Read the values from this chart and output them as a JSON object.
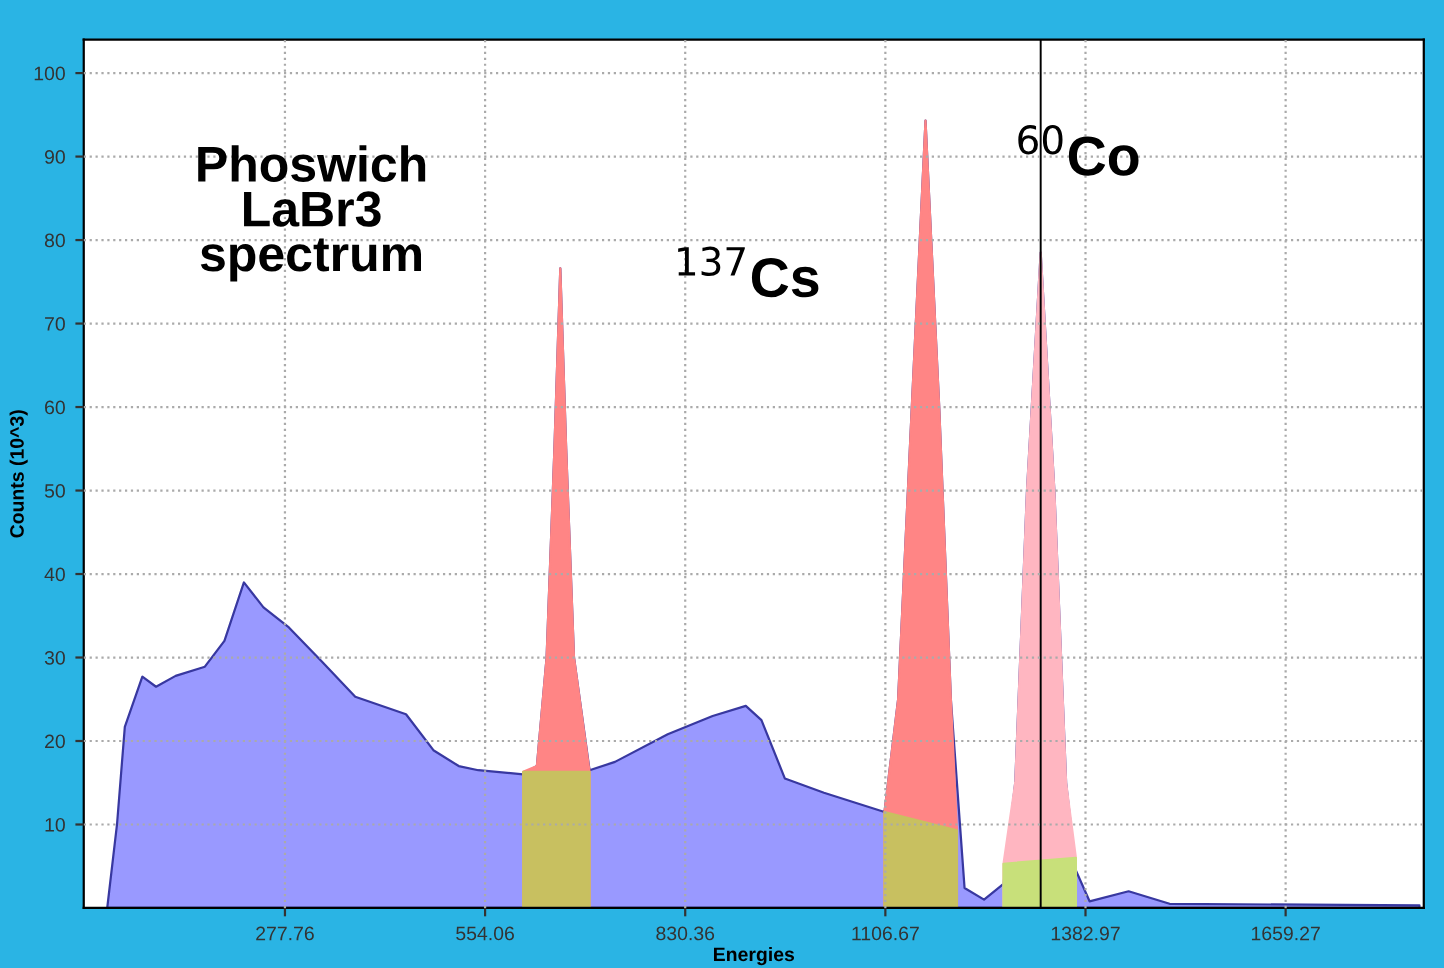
{
  "chart_data": {
    "type": "area",
    "xlabel": "Energies",
    "ylabel": "Counts (10^3)",
    "xlim": [
      0,
      1850
    ],
    "ylim": [
      0,
      104
    ],
    "xticks": [
      277.76,
      554.06,
      830.36,
      1106.67,
      1382.97,
      1659.27
    ],
    "yticks": [
      10,
      20,
      30,
      40,
      50,
      60,
      70,
      80,
      90,
      100
    ],
    "grid": true,
    "series": [
      {
        "color": "#9999ff",
        "x": [
          32.4,
          45.9,
          56.7,
          80.9,
          99.8,
          126.8,
          167.2,
          194.2,
          221.1,
          248.1,
          283.2,
          329,
          374.8,
          444.9,
          482.7,
          517.7,
          544.7,
          606.7,
          625.6,
          639,
          649.8,
          657.9,
          666,
          676.8,
          698.3,
          733.4,
          806.2,
          868.2,
          914,
          935.6,
          968,
          1021.9,
          1105.5,
          1124.3,
          1143.2,
          1162.1,
          1181,
          1197.1,
          1216,
          1242.9,
          1269.8,
          1286,
          1302.2,
          1321.1,
          1340,
          1356.2,
          1369.7,
          1388.6,
          1442.5,
          1499.1,
          1844
        ],
        "values": [
          0,
          10,
          21.7,
          27.7,
          26.5,
          27.8,
          28.9,
          32,
          39,
          36,
          33.6,
          29.5,
          25.3,
          23.2,
          18.9,
          17,
          16.5,
          16,
          17,
          30,
          55,
          76.6,
          55,
          30,
          16.5,
          17.5,
          20.8,
          23,
          24.2,
          22.5,
          15.5,
          13.8,
          11.5,
          25,
          60,
          94.3,
          60,
          25,
          2.4,
          1,
          2.9,
          15,
          50,
          78.5,
          50,
          15,
          4.5,
          0.8,
          2,
          0.5,
          0.3
        ]
      },
      {
        "color": "#ff8585",
        "x": [
          606.7,
          625.6,
          639,
          649.8,
          657.9,
          666,
          676.8,
          698.3
        ],
        "values": [
          16.3,
          17,
          30,
          55,
          76.6,
          55,
          30,
          16.3
        ]
      },
      {
        "color": "#ff8585",
        "x": [
          1105.5,
          1124.3,
          1143.2,
          1162.1,
          1181,
          1197.1,
          1205.5
        ],
        "values": [
          11.5,
          25,
          60,
          94.3,
          60,
          25,
          9.3
        ]
      },
      {
        "color": "#ffb6c1",
        "x": [
          1269.8,
          1286,
          1302.2,
          1321.1,
          1340,
          1356.2,
          1369.7
        ],
        "values": [
          5.3,
          15,
          50,
          78.5,
          50,
          15,
          6.0
        ]
      },
      {
        "color": "#c8c060",
        "x": [
          606.7,
          698.3
        ],
        "values": [
          16.3,
          16.3
        ]
      },
      {
        "color": "#c8c060",
        "x": [
          1105.5,
          1205.5
        ],
        "values": [
          11.5,
          9.3
        ]
      },
      {
        "color": "#c8e07a",
        "x": [
          1269.8,
          1369.7
        ],
        "values": [
          5.3,
          6.0
        ]
      }
    ],
    "ref_lines": [
      {
        "axis": "x",
        "value": 1321.1,
        "color": "#000000"
      }
    ],
    "annotations": [
      "Phoswich\nLaBr3\nspectrum",
      "$^{137}$Cs",
      "$^{60}$Co"
    ]
  }
}
